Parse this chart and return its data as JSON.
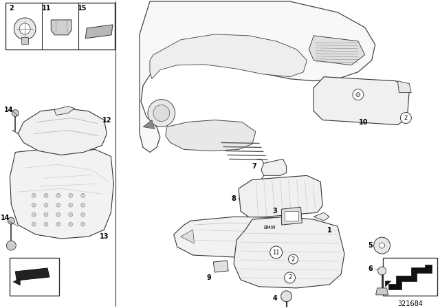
{
  "bg_color": "#ffffff",
  "fig_width": 6.4,
  "fig_height": 4.48,
  "dpi": 100,
  "diagram_id": "321684",
  "line_color": "#333333",
  "lw": 0.7
}
